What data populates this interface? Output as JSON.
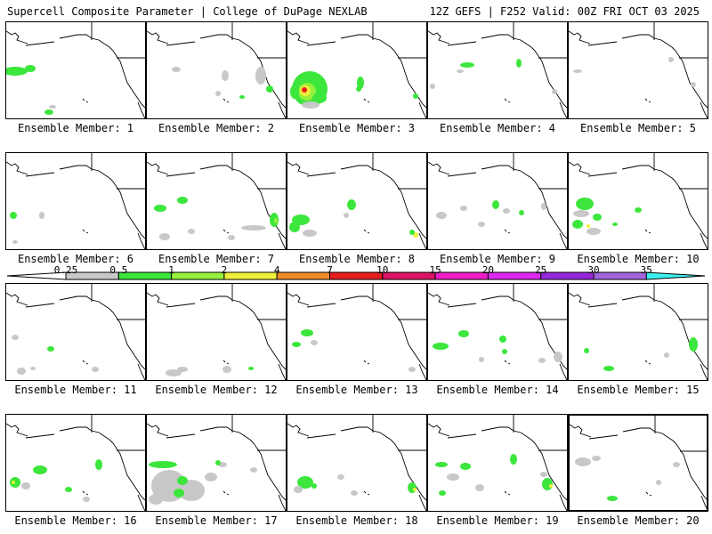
{
  "header": {
    "title": "Supercell Composite Parameter | College of DuPage NEXLAB",
    "run_info": "12Z GEFS | F252 Valid: 00Z FRI OCT 03 2025"
  },
  "colors": {
    "gray": "#c8c8c8",
    "green": "#3ce63c",
    "lightgreen": "#96f03c",
    "yellow": "#f0f03c",
    "orange": "#f08c28",
    "red": "#e61e1e",
    "crimson": "#dc1464",
    "magenta": "#f01ec8",
    "violet": "#dc28f0",
    "purple": "#9628dc",
    "lavender": "#a064dc",
    "cyan": "#3cf0f0"
  },
  "colorbar": {
    "labels": [
      "0.25",
      "0.5",
      "1",
      "2",
      "4",
      "7",
      "10",
      "15",
      "20",
      "25",
      "30",
      "35"
    ],
    "segment_colors": [
      "#c8c8c8",
      "#3ce63c",
      "#96f03c",
      "#f0f03c",
      "#f08c28",
      "#e61e1e",
      "#dc1464",
      "#f01ec8",
      "#dc28f0",
      "#9628dc",
      "#a064dc"
    ],
    "cap_left_color": "#ffffff",
    "cap_right_color": "#3cf0f0"
  },
  "panels": [
    {
      "label": "Ensemble Member: 1",
      "blobs": [
        [
          "green",
          10,
          55,
          14,
          5
        ],
        [
          "green",
          27,
          52,
          6,
          4
        ],
        [
          "green",
          48,
          101,
          5,
          3
        ],
        [
          "gray",
          52,
          95,
          4,
          2
        ]
      ]
    },
    {
      "label": "Ensemble Member: 2",
      "blobs": [
        [
          "gray",
          33,
          53,
          5,
          3
        ],
        [
          "gray",
          88,
          60,
          4,
          6
        ],
        [
          "gray",
          128,
          60,
          6,
          10
        ],
        [
          "green",
          138,
          75,
          4,
          4
        ],
        [
          "gray",
          80,
          80,
          3,
          3
        ],
        [
          "green",
          107,
          84,
          3,
          2
        ]
      ]
    },
    {
      "label": "Ensemble Member: 3",
      "blobs": [
        [
          "green",
          25,
          75,
          20,
          20
        ],
        [
          "lightgreen",
          22,
          78,
          10,
          10
        ],
        [
          "yellow",
          20,
          77,
          6,
          6
        ],
        [
          "red",
          19,
          76,
          3,
          3
        ],
        [
          "green",
          8,
          78,
          5,
          8
        ],
        [
          "green",
          36,
          85,
          8,
          6
        ],
        [
          "green",
          82,
          68,
          4,
          7
        ],
        [
          "green",
          80,
          75,
          3,
          3
        ],
        [
          "green",
          144,
          83,
          3,
          3
        ],
        [
          "gray",
          26,
          93,
          10,
          4
        ]
      ]
    },
    {
      "label": "Ensemble Member: 4",
      "blobs": [
        [
          "green",
          44,
          48,
          8,
          3
        ],
        [
          "green",
          102,
          46,
          3,
          5
        ],
        [
          "gray",
          36,
          55,
          4,
          2
        ],
        [
          "gray",
          5,
          72,
          3,
          3
        ],
        [
          "gray",
          142,
          78,
          3,
          3
        ]
      ]
    },
    {
      "label": "Ensemble Member: 5",
      "blobs": [
        [
          "gray",
          10,
          55,
          5,
          2
        ],
        [
          "gray",
          115,
          42,
          3,
          3
        ],
        [
          "gray",
          140,
          70,
          3,
          3
        ]
      ]
    },
    {
      "label": "Ensemble Member: 6",
      "blobs": [
        [
          "green",
          8,
          70,
          4,
          4
        ],
        [
          "gray",
          40,
          70,
          3,
          4
        ],
        [
          "gray",
          10,
          100,
          3,
          2
        ]
      ]
    },
    {
      "label": "Ensemble Member: 7",
      "blobs": [
        [
          "green",
          40,
          53,
          6,
          4
        ],
        [
          "green",
          15,
          62,
          7,
          4
        ],
        [
          "green",
          143,
          75,
          5,
          8
        ],
        [
          "lightgreen",
          145,
          76,
          2,
          3
        ],
        [
          "gray",
          120,
          84,
          14,
          3
        ],
        [
          "gray",
          20,
          94,
          6,
          4
        ],
        [
          "gray",
          50,
          88,
          4,
          3
        ],
        [
          "gray",
          95,
          95,
          4,
          3
        ]
      ]
    },
    {
      "label": "Ensemble Member: 8",
      "blobs": [
        [
          "green",
          15,
          75,
          10,
          6
        ],
        [
          "green",
          8,
          83,
          6,
          6
        ],
        [
          "gray",
          25,
          90,
          8,
          4
        ],
        [
          "green",
          72,
          58,
          5,
          6
        ],
        [
          "gray",
          66,
          70,
          3,
          3
        ],
        [
          "yellow",
          144,
          92,
          3,
          3
        ],
        [
          "green",
          140,
          89,
          3,
          3
        ]
      ]
    },
    {
      "label": "Ensemble Member: 9",
      "blobs": [
        [
          "gray",
          15,
          70,
          6,
          4
        ],
        [
          "gray",
          40,
          62,
          4,
          3
        ],
        [
          "green",
          76,
          58,
          4,
          5
        ],
        [
          "gray",
          88,
          65,
          4,
          3
        ],
        [
          "green",
          105,
          67,
          3,
          3
        ],
        [
          "gray",
          130,
          60,
          3,
          4
        ],
        [
          "gray",
          60,
          80,
          4,
          3
        ]
      ]
    },
    {
      "label": "Ensemble Member: 10",
      "blobs": [
        [
          "green",
          18,
          57,
          10,
          7
        ],
        [
          "gray",
          14,
          68,
          9,
          4
        ],
        [
          "green",
          32,
          72,
          5,
          4
        ],
        [
          "green",
          10,
          80,
          6,
          5
        ],
        [
          "green",
          78,
          64,
          4,
          3
        ],
        [
          "gray",
          28,
          88,
          8,
          4
        ],
        [
          "yellow",
          22,
          82,
          2,
          2
        ],
        [
          "green",
          52,
          80,
          3,
          2
        ]
      ]
    },
    {
      "label": "Ensemble Member: 11",
      "blobs": [
        [
          "gray",
          10,
          60,
          4,
          3
        ],
        [
          "green",
          50,
          73,
          4,
          3
        ],
        [
          "gray",
          17,
          98,
          5,
          4
        ],
        [
          "gray",
          30,
          95,
          3,
          2
        ],
        [
          "gray",
          100,
          96,
          4,
          3
        ]
      ]
    },
    {
      "label": "Ensemble Member: 12",
      "blobs": [
        [
          "gray",
          30,
          100,
          9,
          4
        ],
        [
          "gray",
          40,
          96,
          6,
          3
        ],
        [
          "gray",
          90,
          96,
          5,
          4
        ],
        [
          "green",
          117,
          95,
          3,
          2
        ]
      ]
    },
    {
      "label": "Ensemble Member: 13",
      "blobs": [
        [
          "green",
          22,
          55,
          7,
          4
        ],
        [
          "green",
          10,
          68,
          5,
          3
        ],
        [
          "gray",
          30,
          66,
          4,
          3
        ],
        [
          "gray",
          140,
          96,
          4,
          3
        ]
      ]
    },
    {
      "label": "Ensemble Member: 14",
      "blobs": [
        [
          "green",
          14,
          70,
          9,
          4
        ],
        [
          "green",
          40,
          56,
          6,
          4
        ],
        [
          "green",
          84,
          62,
          4,
          4
        ],
        [
          "green",
          86,
          76,
          3,
          3
        ],
        [
          "gray",
          146,
          82,
          5,
          6
        ],
        [
          "gray",
          128,
          86,
          4,
          3
        ],
        [
          "gray",
          60,
          85,
          3,
          3
        ]
      ]
    },
    {
      "label": "Ensemble Member: 15",
      "blobs": [
        [
          "green",
          140,
          68,
          5,
          8
        ],
        [
          "green",
          20,
          75,
          3,
          3
        ],
        [
          "green",
          45,
          95,
          6,
          3
        ],
        [
          "gray",
          110,
          80,
          3,
          3
        ]
      ]
    },
    {
      "label": "Ensemble Member: 16",
      "blobs": [
        [
          "green",
          38,
          62,
          8,
          5
        ],
        [
          "green",
          10,
          76,
          6,
          6
        ],
        [
          "yellow",
          8,
          76,
          2,
          2
        ],
        [
          "gray",
          22,
          80,
          5,
          4
        ],
        [
          "green",
          70,
          84,
          4,
          3
        ],
        [
          "green",
          104,
          56,
          4,
          6
        ],
        [
          "gray",
          90,
          95,
          4,
          3
        ]
      ]
    },
    {
      "label": "Ensemble Member: 17",
      "blobs": [
        [
          "green",
          18,
          56,
          16,
          4
        ],
        [
          "gray",
          25,
          80,
          20,
          18
        ],
        [
          "gray",
          50,
          85,
          15,
          12
        ],
        [
          "green",
          40,
          74,
          6,
          5
        ],
        [
          "green",
          36,
          88,
          6,
          5
        ],
        [
          "gray",
          10,
          95,
          8,
          6
        ],
        [
          "gray",
          72,
          70,
          7,
          5
        ],
        [
          "gray",
          85,
          56,
          5,
          3
        ],
        [
          "green",
          80,
          54,
          3,
          3
        ],
        [
          "gray",
          120,
          62,
          4,
          3
        ]
      ]
    },
    {
      "label": "Ensemble Member: 18",
      "blobs": [
        [
          "green",
          20,
          76,
          9,
          7
        ],
        [
          "green",
          30,
          80,
          3,
          3
        ],
        [
          "gray",
          12,
          84,
          5,
          4
        ],
        [
          "green",
          140,
          82,
          5,
          6
        ],
        [
          "yellow",
          143,
          84,
          2,
          2
        ],
        [
          "gray",
          60,
          70,
          4,
          3
        ],
        [
          "gray",
          75,
          88,
          4,
          3
        ]
      ]
    },
    {
      "label": "Ensemble Member: 19",
      "blobs": [
        [
          "green",
          15,
          56,
          7,
          3
        ],
        [
          "green",
          42,
          58,
          6,
          4
        ],
        [
          "gray",
          28,
          70,
          7,
          4
        ],
        [
          "green",
          96,
          50,
          4,
          6
        ],
        [
          "gray",
          58,
          82,
          5,
          4
        ],
        [
          "gray",
          130,
          67,
          4,
          3
        ],
        [
          "green",
          134,
          78,
          6,
          7
        ],
        [
          "yellow",
          138,
          80,
          2,
          2
        ],
        [
          "green",
          16,
          88,
          4,
          3
        ]
      ]
    },
    {
      "label": "Ensemble Member: 20",
      "blobs": [
        [
          "gray",
          15,
          52,
          9,
          5
        ],
        [
          "gray",
          30,
          48,
          5,
          3
        ],
        [
          "green",
          48,
          93,
          6,
          3
        ],
        [
          "gray",
          120,
          55,
          4,
          3
        ],
        [
          "gray",
          100,
          75,
          3,
          3
        ]
      ]
    }
  ]
}
